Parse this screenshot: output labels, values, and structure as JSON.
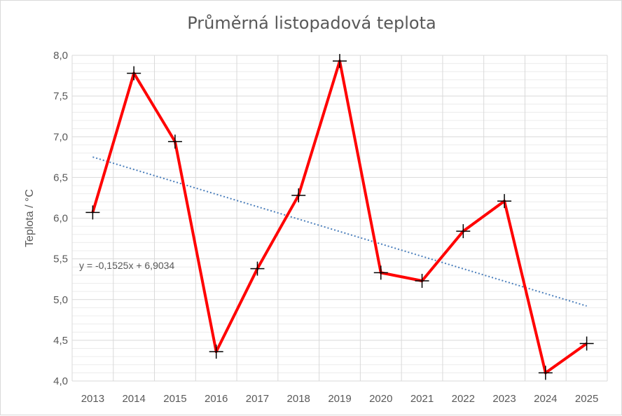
{
  "chart_data": {
    "type": "line",
    "title": "Průměrná listopadová teplota",
    "xlabel": "",
    "ylabel": "Teplota / °C",
    "categories": [
      "2013",
      "2014",
      "2015",
      "2016",
      "2017",
      "2018",
      "2019",
      "2020",
      "2021",
      "2022",
      "2023",
      "2024",
      "2025"
    ],
    "series": [
      {
        "values": [
          6.07,
          7.78,
          6.94,
          4.36,
          5.38,
          6.28,
          7.93,
          5.33,
          5.23,
          5.84,
          6.21,
          4.1,
          4.46
        ],
        "color": "#ff0000",
        "marker": "plus",
        "marker_color": "#000000"
      }
    ],
    "ylim": [
      4.0,
      8.0
    ],
    "yticks": [
      "4,0",
      "4,5",
      "5,0",
      "5,5",
      "6,0",
      "6,5",
      "7,0",
      "7,5",
      "8,0"
    ],
    "ytick_values": [
      4.0,
      4.5,
      5.0,
      5.5,
      6.0,
      6.5,
      7.0,
      7.5,
      8.0
    ],
    "trendline": {
      "slope": -0.1525,
      "intercept": 6.9034,
      "color": "#4a7ebb",
      "style": "dotted",
      "label": "y = -0,1525x + 6,9034"
    },
    "grid": true,
    "legend": "none"
  }
}
